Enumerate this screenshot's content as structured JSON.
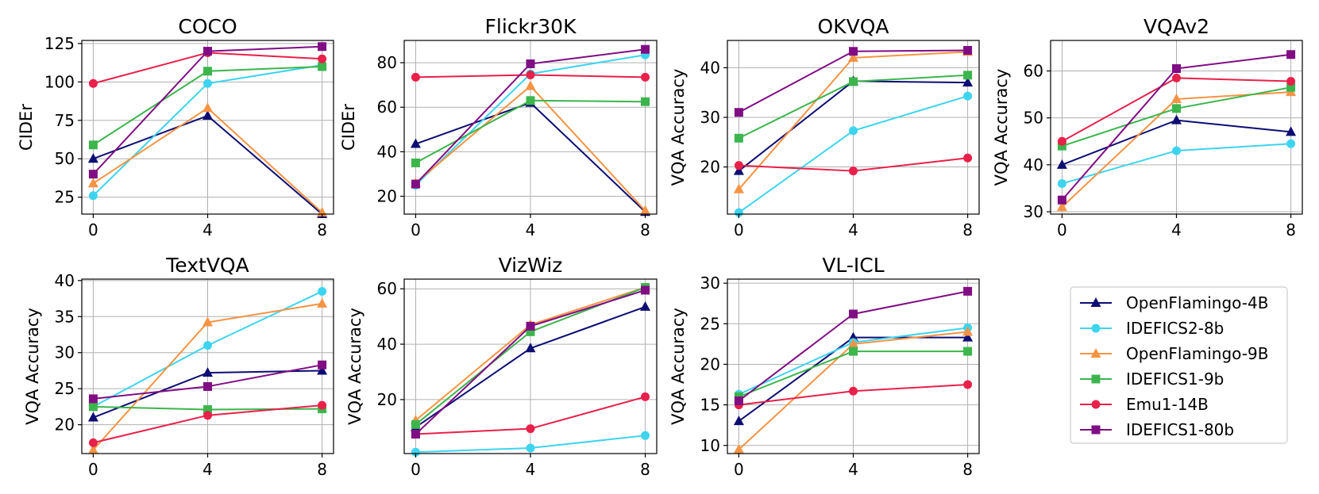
{
  "figure": {
    "x_ticks": [
      0,
      4,
      8
    ],
    "series_styles": [
      {
        "name": "OpenFlamingo-4B",
        "color": "#0d0d73",
        "marker": "triangle"
      },
      {
        "name": "IDEFICS2-8b",
        "color": "#3dd4ef",
        "marker": "circle"
      },
      {
        "name": "OpenFlamingo-9B",
        "color": "#f59444",
        "marker": "triangle"
      },
      {
        "name": "IDEFICS1-9b",
        "color": "#3cb54c",
        "marker": "square"
      },
      {
        "name": "Emu1-14B",
        "color": "#e8204a",
        "marker": "circle"
      },
      {
        "name": "IDEFICS1-80b",
        "color": "#800d84",
        "marker": "square"
      }
    ],
    "legend_position": "bottom-right (empty 8th panel slot)"
  },
  "chart_data": [
    {
      "type": "line",
      "title": "COCO",
      "xlabel": "",
      "ylabel": "CIDEr",
      "x": [
        0,
        4,
        8
      ],
      "xlim": [
        -0.4,
        8.4
      ],
      "ylim": [
        14,
        127
      ],
      "yticks": [
        25,
        50,
        75,
        100,
        125
      ],
      "grid": true,
      "series": [
        {
          "name": "OpenFlamingo-4B",
          "values": [
            50,
            78,
            14
          ]
        },
        {
          "name": "IDEFICS2-8b",
          "values": [
            26,
            99,
            111
          ]
        },
        {
          "name": "OpenFlamingo-9B",
          "values": [
            34,
            83,
            15
          ]
        },
        {
          "name": "IDEFICS1-9b",
          "values": [
            59,
            107,
            110
          ]
        },
        {
          "name": "Emu1-14B",
          "values": [
            99,
            119,
            115
          ]
        },
        {
          "name": "IDEFICS1-80b",
          "values": [
            40,
            120,
            123
          ]
        }
      ]
    },
    {
      "type": "line",
      "title": "Flickr30K",
      "xlabel": "",
      "ylabel": "CIDEr",
      "x": [
        0,
        4,
        8
      ],
      "xlim": [
        -0.4,
        8.4
      ],
      "ylim": [
        12,
        90
      ],
      "yticks": [
        20,
        40,
        60,
        80
      ],
      "grid": true,
      "series": [
        {
          "name": "OpenFlamingo-4B",
          "values": [
            43.5,
            62,
            13
          ]
        },
        {
          "name": "IDEFICS2-8b",
          "values": [
            25,
            75,
            83.5
          ]
        },
        {
          "name": "OpenFlamingo-9B",
          "values": [
            26,
            69.5,
            13.5
          ]
        },
        {
          "name": "IDEFICS1-9b",
          "values": [
            35,
            63,
            62.5
          ]
        },
        {
          "name": "Emu1-14B",
          "values": [
            73.5,
            74.5,
            73.5
          ]
        },
        {
          "name": "IDEFICS1-80b",
          "values": [
            25.5,
            79.5,
            86
          ]
        }
      ]
    },
    {
      "type": "line",
      "title": "OKVQA",
      "xlabel": "",
      "ylabel": "VQA Accuracy",
      "x": [
        0,
        4,
        8
      ],
      "xlim": [
        -0.4,
        8.4
      ],
      "ylim": [
        10.5,
        45.5
      ],
      "yticks": [
        20,
        30,
        40
      ],
      "grid": true,
      "series": [
        {
          "name": "OpenFlamingo-4B",
          "values": [
            19.2,
            37.3,
            37
          ]
        },
        {
          "name": "IDEFICS2-8b",
          "values": [
            10.8,
            27.3,
            34.3
          ]
        },
        {
          "name": "OpenFlamingo-9B",
          "values": [
            15.5,
            42,
            43.2
          ]
        },
        {
          "name": "IDEFICS1-9b",
          "values": [
            25.8,
            37.2,
            38.5
          ]
        },
        {
          "name": "Emu1-14B",
          "values": [
            20.3,
            19.2,
            21.8
          ]
        },
        {
          "name": "IDEFICS1-80b",
          "values": [
            31,
            43.3,
            43.5
          ]
        }
      ]
    },
    {
      "type": "line",
      "title": "VQAv2",
      "xlabel": "",
      "ylabel": "VQA Accuracy",
      "x": [
        0,
        4,
        8
      ],
      "xlim": [
        -0.4,
        8.4
      ],
      "ylim": [
        29.5,
        66.5
      ],
      "yticks": [
        30,
        40,
        50,
        60
      ],
      "grid": true,
      "series": [
        {
          "name": "OpenFlamingo-4B",
          "values": [
            40,
            49.5,
            47
          ]
        },
        {
          "name": "IDEFICS2-8b",
          "values": [
            36,
            43,
            44.5
          ]
        },
        {
          "name": "OpenFlamingo-9B",
          "values": [
            31,
            54,
            55.5
          ]
        },
        {
          "name": "IDEFICS1-9b",
          "values": [
            44,
            52,
            56.5
          ]
        },
        {
          "name": "Emu1-14B",
          "values": [
            45,
            58.5,
            57.8
          ]
        },
        {
          "name": "IDEFICS1-80b",
          "values": [
            32.5,
            60.5,
            63.5
          ]
        }
      ]
    },
    {
      "type": "line",
      "title": "TextVQA",
      "xlabel": "",
      "ylabel": "VQA Accuracy",
      "x": [
        0,
        4,
        8
      ],
      "xlim": [
        -0.4,
        8.4
      ],
      "ylim": [
        16,
        40.2
      ],
      "yticks": [
        20,
        25,
        30,
        35,
        40
      ],
      "grid": true,
      "series": [
        {
          "name": "OpenFlamingo-4B",
          "values": [
            21,
            27.2,
            27.5
          ]
        },
        {
          "name": "IDEFICS2-8b",
          "values": [
            22.5,
            31,
            38.5
          ]
        },
        {
          "name": "OpenFlamingo-9B",
          "values": [
            16.5,
            34.2,
            36.8
          ]
        },
        {
          "name": "IDEFICS1-9b",
          "values": [
            22.5,
            22.1,
            22.2
          ]
        },
        {
          "name": "Emu1-14B",
          "values": [
            17.5,
            21.3,
            22.7
          ]
        },
        {
          "name": "IDEFICS1-80b",
          "values": [
            23.6,
            25.3,
            28.3
          ]
        }
      ]
    },
    {
      "type": "line",
      "title": "VizWiz",
      "xlabel": "",
      "ylabel": "VQA Accuracy",
      "x": [
        0,
        4,
        8
      ],
      "xlim": [
        -0.4,
        8.4
      ],
      "ylim": [
        0.5,
        63.5
      ],
      "yticks": [
        20,
        40,
        60
      ],
      "grid": true,
      "series": [
        {
          "name": "OpenFlamingo-4B",
          "values": [
            10,
            38.5,
            53.5
          ]
        },
        {
          "name": "IDEFICS2-8b",
          "values": [
            1,
            2.5,
            7
          ]
        },
        {
          "name": "OpenFlamingo-9B",
          "values": [
            12.5,
            47,
            60.5
          ]
        },
        {
          "name": "IDEFICS1-9b",
          "values": [
            11,
            44.5,
            60.5
          ]
        },
        {
          "name": "Emu1-14B",
          "values": [
            7.5,
            9.5,
            21
          ]
        },
        {
          "name": "IDEFICS1-80b",
          "values": [
            7.5,
            46.5,
            59.5
          ]
        }
      ]
    },
    {
      "type": "line",
      "title": "VL-ICL",
      "xlabel": "",
      "ylabel": "VQA Accuracy",
      "x": [
        0,
        4,
        8
      ],
      "xlim": [
        -0.4,
        8.4
      ],
      "ylim": [
        9,
        30.5
      ],
      "yticks": [
        10,
        15,
        20,
        25,
        30
      ],
      "grid": true,
      "series": [
        {
          "name": "OpenFlamingo-4B",
          "values": [
            13,
            23.3,
            23.3
          ]
        },
        {
          "name": "IDEFICS2-8b",
          "values": [
            16.3,
            22.7,
            24.5
          ]
        },
        {
          "name": "OpenFlamingo-9B",
          "values": [
            9.5,
            22.5,
            24
          ]
        },
        {
          "name": "IDEFICS1-9b",
          "values": [
            16,
            21.6,
            21.6
          ]
        },
        {
          "name": "Emu1-14B",
          "values": [
            15,
            16.7,
            17.5
          ]
        },
        {
          "name": "IDEFICS1-80b",
          "values": [
            15.5,
            26.2,
            29
          ]
        }
      ]
    }
  ]
}
